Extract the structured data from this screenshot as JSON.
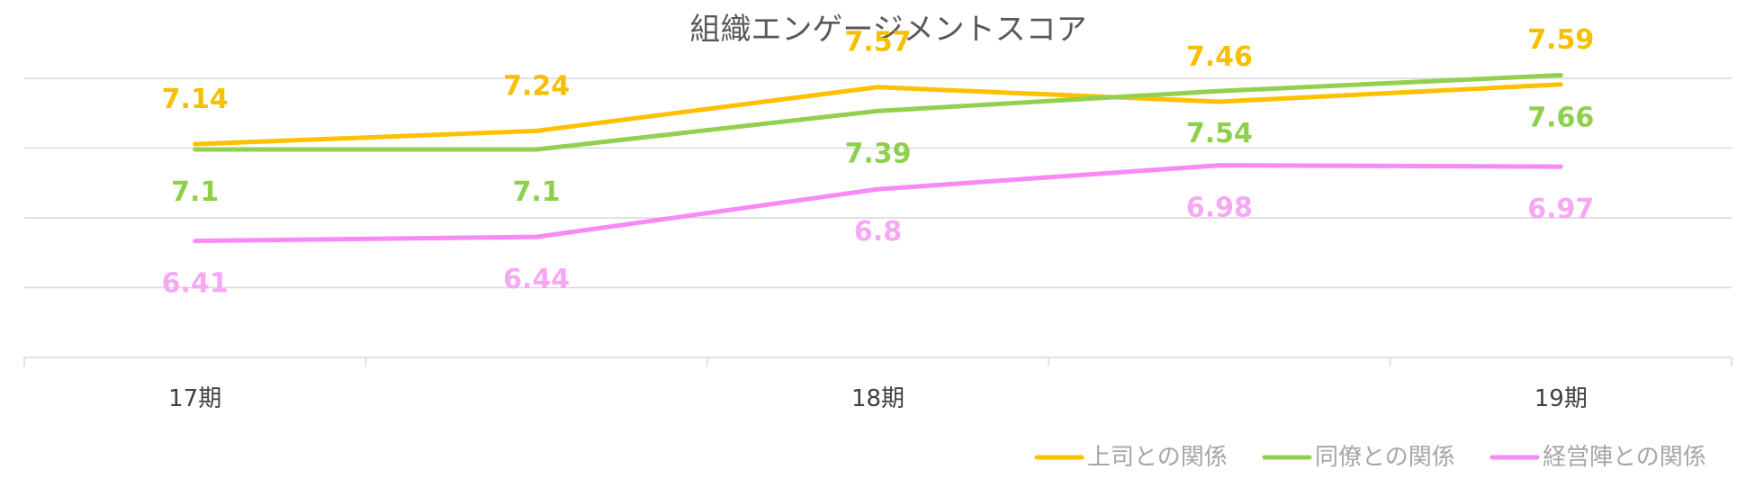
{
  "chart_data": {
    "type": "line",
    "title": "組織エンゲージメントスコア",
    "categories": [
      "17期",
      "",
      "18期",
      "",
      "19期"
    ],
    "grid": true,
    "legend_position": "bottom-right",
    "series": [
      {
        "name": "上司との関係",
        "color": "#FFC000",
        "label_color": "#F6C000",
        "label_position": "above",
        "values": [
          7.14,
          7.24,
          7.57,
          7.46,
          7.59
        ]
      },
      {
        "name": "同僚との関係",
        "color": "#92D050",
        "label_color": "#8ECF4C",
        "label_position": "below",
        "values": [
          7.1,
          7.1,
          7.39,
          7.54,
          7.66
        ]
      },
      {
        "name": "経営陣との関係",
        "color": "#F78AF7",
        "label_color": "#F7A7F3",
        "label_position": "below",
        "values": [
          6.41,
          6.44,
          6.8,
          6.98,
          6.97
        ]
      }
    ]
  }
}
